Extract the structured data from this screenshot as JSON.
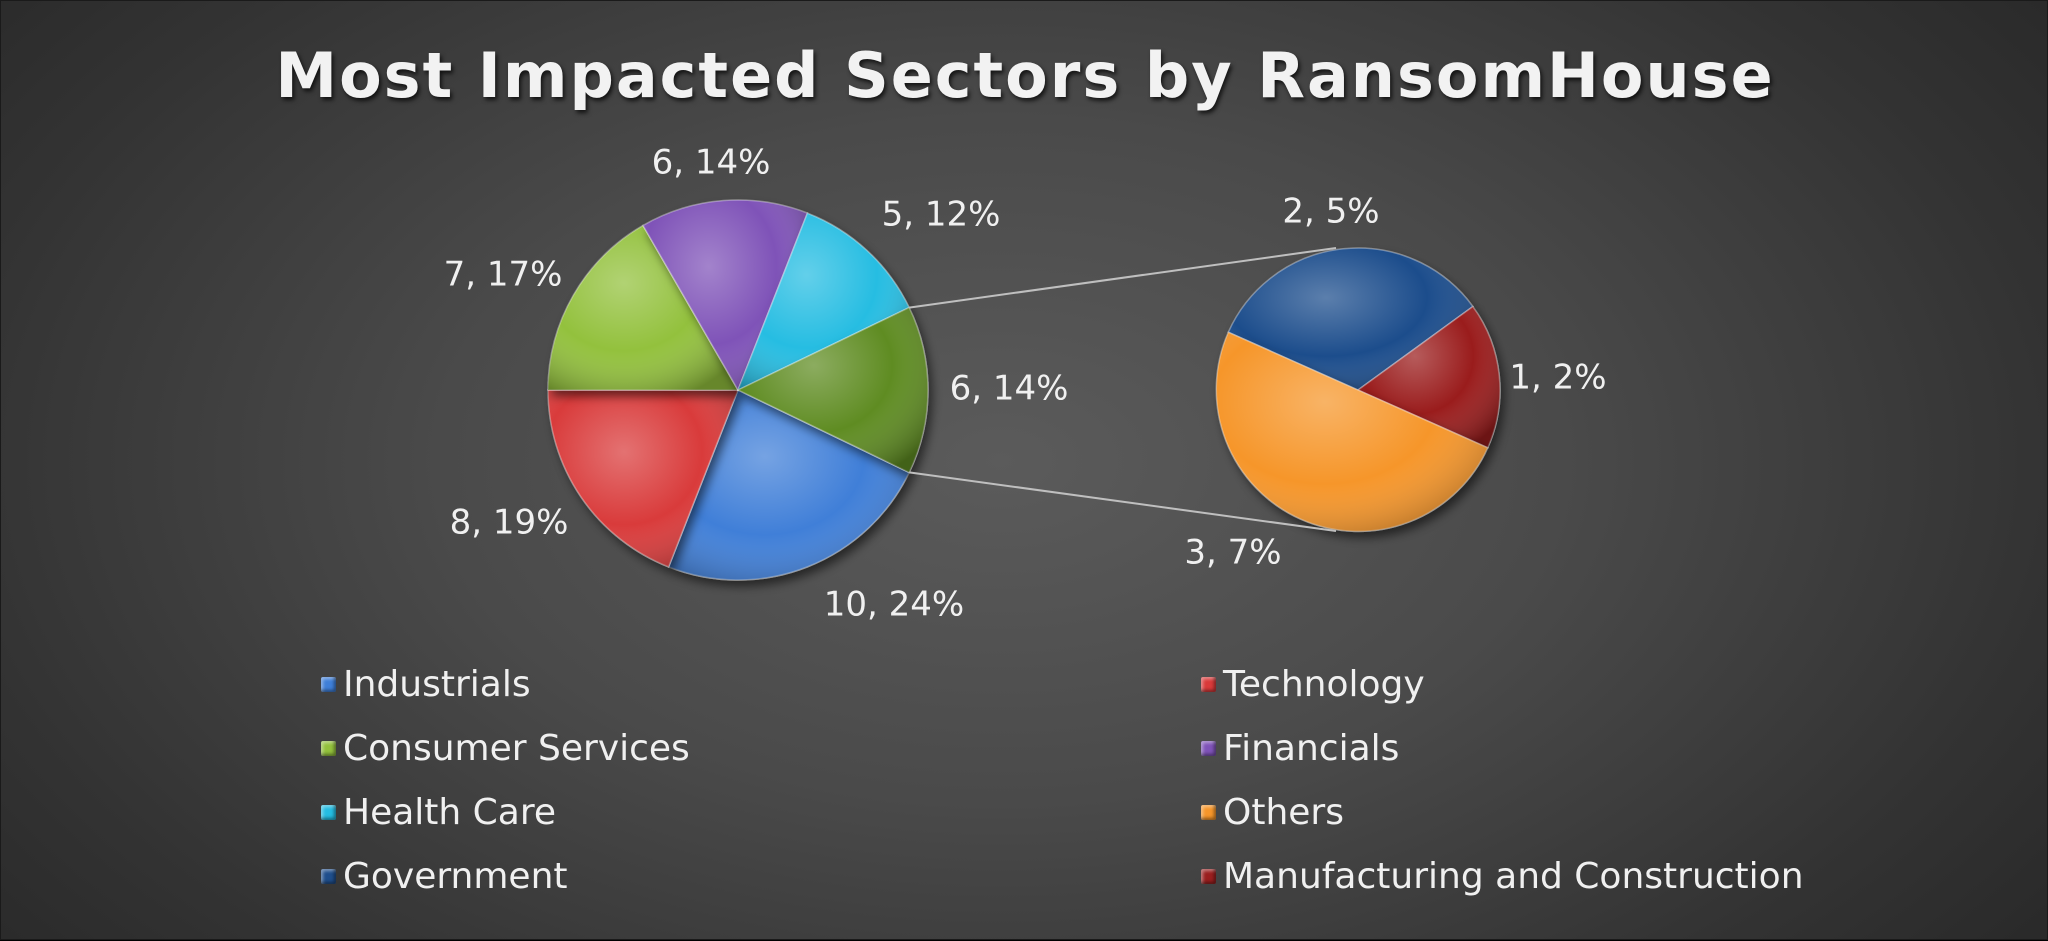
{
  "chart_data": {
    "type": "pie",
    "subtype": "pie-of-pie",
    "title": "Most Impacted Sectors by RansomHouse",
    "slices": [
      {
        "name": "Industrials",
        "value": 10,
        "percent": "24%",
        "label": "10, 24%",
        "color": "#3f7fd8",
        "group": "main"
      },
      {
        "name": "Technology",
        "value": 8,
        "percent": "19%",
        "label": "8, 19%",
        "color": "#d93a3a",
        "group": "main"
      },
      {
        "name": "Consumer Services",
        "value": 7,
        "percent": "17%",
        "label": "7, 17%",
        "color": "#93c13c",
        "group": "main"
      },
      {
        "name": "Financials",
        "value": 6,
        "percent": "14%",
        "label": "6, 14%",
        "color": "#7f53b8",
        "group": "main"
      },
      {
        "name": "Health Care",
        "value": 5,
        "percent": "12%",
        "label": "5, 12%",
        "color": "#25bde2",
        "group": "main"
      },
      {
        "name": "Government",
        "value": 2,
        "percent": "5%",
        "label": "2, 5%",
        "color": "#1f4e8c",
        "group": "secondary"
      },
      {
        "name": "Manufacturing and Construction",
        "value": 1,
        "percent": "2%",
        "label": "1, 2%",
        "color": "#9a1f1f",
        "group": "secondary"
      },
      {
        "name": "Others",
        "value": 3,
        "percent": "7%",
        "label": "3, 7%",
        "color": "#f6962a",
        "group": "secondary"
      }
    ],
    "other_slice": {
      "label": "6, 14%",
      "value": 6,
      "percent": "14%",
      "color": "#5f8c22"
    },
    "legend": {
      "placement": "bottom",
      "entries": [
        {
          "name": "Industrials",
          "color": "#3f7fd8"
        },
        {
          "name": "Technology",
          "color": "#d93a3a"
        },
        {
          "name": "Consumer Services",
          "color": "#93c13c"
        },
        {
          "name": "Financials",
          "color": "#7f53b8"
        },
        {
          "name": "Health Care",
          "color": "#25bde2"
        },
        {
          "name": "Others",
          "color": "#f6962a"
        },
        {
          "name": "Government",
          "color": "#1f4e8c"
        },
        {
          "name": "Manufacturing and Construction",
          "color": "#9a1f1f"
        }
      ]
    }
  }
}
